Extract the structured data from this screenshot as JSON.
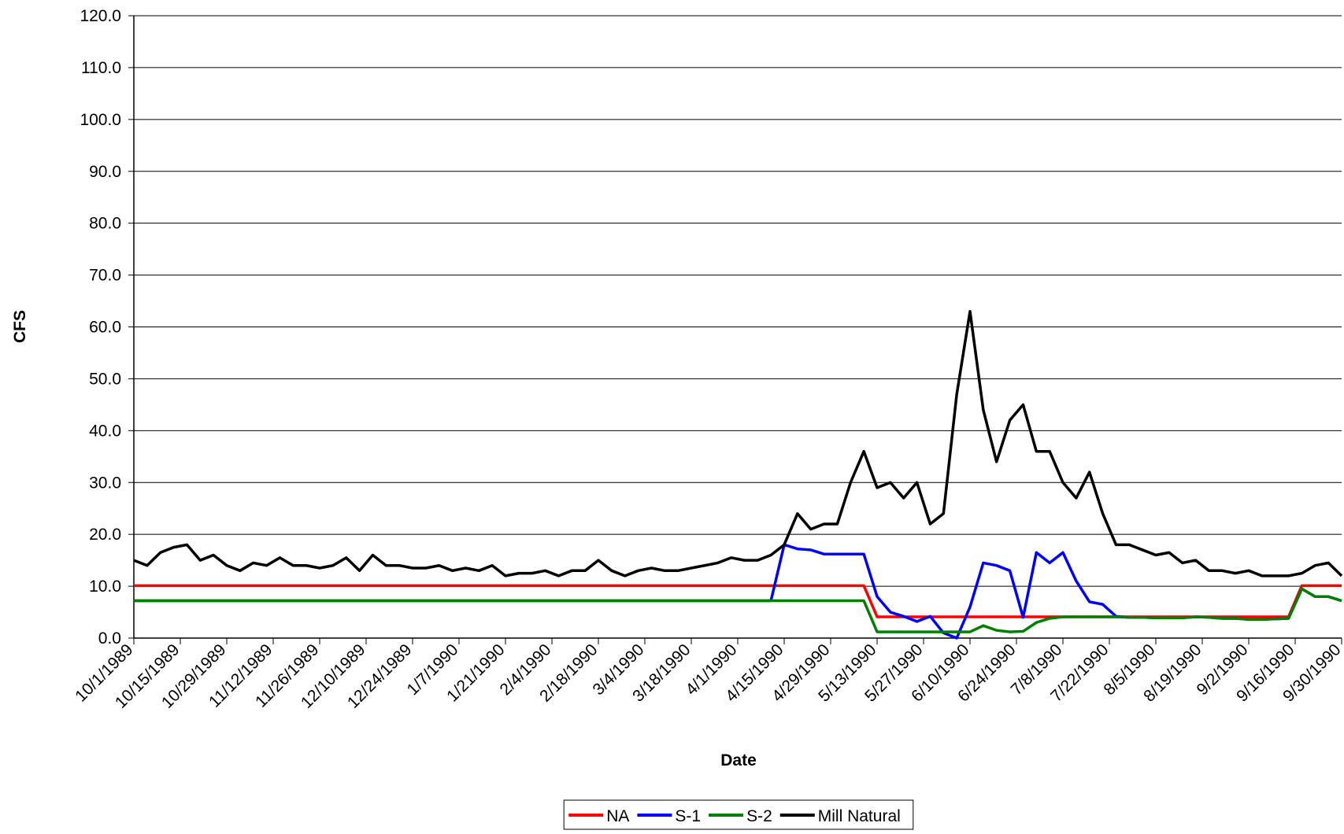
{
  "chart_data": {
    "type": "line",
    "x_label": "Date",
    "y_label": "CFS",
    "x": [
      "10/1/1989",
      "10/5/1989",
      "10/9/1989",
      "10/13/1989",
      "10/17/1989",
      "10/21/1989",
      "10/25/1989",
      "10/29/1989",
      "11/2/1989",
      "11/6/1989",
      "11/10/1989",
      "11/14/1989",
      "11/18/1989",
      "11/22/1989",
      "11/26/1989",
      "11/30/1989",
      "12/4/1989",
      "12/8/1989",
      "12/12/1989",
      "12/16/1989",
      "12/20/1989",
      "12/24/1989",
      "12/28/1989",
      "1/1/1990",
      "1/5/1990",
      "1/9/1990",
      "1/13/1990",
      "1/17/1990",
      "1/21/1990",
      "1/25/1990",
      "1/29/1990",
      "2/2/1990",
      "2/6/1990",
      "2/10/1990",
      "2/14/1990",
      "2/18/1990",
      "2/22/1990",
      "2/26/1990",
      "3/2/1990",
      "3/6/1990",
      "3/10/1990",
      "3/14/1990",
      "3/18/1990",
      "3/22/1990",
      "3/26/1990",
      "3/30/1990",
      "4/3/1990",
      "4/7/1990",
      "4/11/1990",
      "4/15/1990",
      "4/19/1990",
      "4/23/1990",
      "4/27/1990",
      "5/1/1990",
      "5/5/1990",
      "5/9/1990",
      "5/13/1990",
      "5/17/1990",
      "5/21/1990",
      "5/25/1990",
      "5/29/1990",
      "6/2/1990",
      "6/6/1990",
      "6/10/1990",
      "6/14/1990",
      "6/18/1990",
      "6/22/1990",
      "6/26/1990",
      "6/30/1990",
      "7/4/1990",
      "7/8/1990",
      "7/12/1990",
      "7/16/1990",
      "7/20/1990",
      "7/24/1990",
      "7/28/1990",
      "8/1/1990",
      "8/5/1990",
      "8/9/1990",
      "8/13/1990",
      "8/17/1990",
      "8/21/1990",
      "8/25/1990",
      "8/29/1990",
      "9/2/1990",
      "9/6/1990",
      "9/10/1990",
      "9/14/1990",
      "9/18/1990",
      "9/22/1990",
      "9/26/1990",
      "9/30/1990"
    ],
    "xlim": [
      "10/1/1989",
      "9/30/1990"
    ],
    "xticks": [
      "10/1/1989",
      "10/15/1989",
      "10/29/1989",
      "11/12/1989",
      "11/26/1989",
      "12/10/1989",
      "12/24/1989",
      "1/7/1990",
      "1/21/1990",
      "2/4/1990",
      "2/18/1990",
      "3/4/1990",
      "3/18/1990",
      "4/1/1990",
      "4/15/1990",
      "4/29/1990",
      "5/13/1990",
      "5/27/1990",
      "6/10/1990",
      "6/24/1990",
      "7/8/1990",
      "7/22/1990",
      "8/5/1990",
      "8/19/1990",
      "9/2/1990",
      "9/16/1990",
      "9/30/1990"
    ],
    "ylim": [
      0,
      120
    ],
    "yticks": [
      {
        "value": 0,
        "label": "0.0"
      },
      {
        "value": 10,
        "label": "10.0"
      },
      {
        "value": 20,
        "label": "20.0"
      },
      {
        "value": 30,
        "label": "30.0"
      },
      {
        "value": 40,
        "label": "40.0"
      },
      {
        "value": 50,
        "label": "50.0"
      },
      {
        "value": 60,
        "label": "60.0"
      },
      {
        "value": 70,
        "label": "70.0"
      },
      {
        "value": 80,
        "label": "80.0"
      },
      {
        "value": 90,
        "label": "90.0"
      },
      {
        "value": 100,
        "label": "100.0"
      },
      {
        "value": 110,
        "label": "110.0"
      },
      {
        "value": 120,
        "label": "120.0"
      }
    ],
    "grid": true,
    "legend": "bottom",
    "series": [
      {
        "name": "NA",
        "color": "#ff0000",
        "values": [
          10.1,
          10.1,
          10.1,
          10.1,
          10.1,
          10.1,
          10.1,
          10.1,
          10.1,
          10.1,
          10.1,
          10.1,
          10.1,
          10.1,
          10.1,
          10.1,
          10.1,
          10.1,
          10.1,
          10.1,
          10.1,
          10.1,
          10.1,
          10.1,
          10.1,
          10.1,
          10.1,
          10.1,
          10.1,
          10.1,
          10.1,
          10.1,
          10.1,
          10.1,
          10.1,
          10.1,
          10.1,
          10.1,
          10.1,
          10.1,
          10.1,
          10.1,
          10.1,
          10.1,
          10.1,
          10.1,
          10.1,
          10.1,
          10.1,
          10.1,
          10.1,
          10.1,
          10.1,
          10.1,
          10.1,
          10.1,
          4.1,
          4.1,
          4.1,
          4.1,
          4.1,
          4.1,
          4.1,
          4.1,
          4.1,
          4.1,
          4.1,
          4.1,
          4.1,
          4.1,
          4.1,
          4.1,
          4.1,
          4.1,
          4.1,
          4.1,
          4.1,
          4.1,
          4.1,
          4.1,
          4.1,
          4.1,
          4.1,
          4.1,
          4.1,
          4.1,
          4.1,
          4.1,
          10.1,
          10.1,
          10.1,
          10.1
        ]
      },
      {
        "name": "S-1",
        "color": "#0000ff",
        "values": [
          7.2,
          7.2,
          7.2,
          7.2,
          7.2,
          7.2,
          7.2,
          7.2,
          7.2,
          7.2,
          7.2,
          7.2,
          7.2,
          7.2,
          7.2,
          7.2,
          7.2,
          7.2,
          7.2,
          7.2,
          7.2,
          7.2,
          7.2,
          7.2,
          7.2,
          7.2,
          7.2,
          7.2,
          7.2,
          7.2,
          7.2,
          7.2,
          7.2,
          7.2,
          7.2,
          7.2,
          7.2,
          7.2,
          7.2,
          7.2,
          7.2,
          7.2,
          7.2,
          7.2,
          7.2,
          7.2,
          7.2,
          7.2,
          7.2,
          18.0,
          17.2,
          17.0,
          16.2,
          16.2,
          16.2,
          16.2,
          8.0,
          5.0,
          4.2,
          3.2,
          4.2,
          1.0,
          0,
          6.0,
          14.5,
          14.0,
          13.0,
          4.0,
          16.5,
          14.5,
          16.5,
          11.0,
          7.0,
          6.5,
          4.2,
          4.0,
          4.0,
          3.9,
          3.9,
          3.9,
          4.1,
          4.0,
          3.8,
          3.8,
          3.6,
          3.6,
          3.7,
          3.8,
          9.5,
          8.0,
          8.0,
          7.2
        ]
      },
      {
        "name": "S-2",
        "color": "#008000",
        "values": [
          7.2,
          7.2,
          7.2,
          7.2,
          7.2,
          7.2,
          7.2,
          7.2,
          7.2,
          7.2,
          7.2,
          7.2,
          7.2,
          7.2,
          7.2,
          7.2,
          7.2,
          7.2,
          7.2,
          7.2,
          7.2,
          7.2,
          7.2,
          7.2,
          7.2,
          7.2,
          7.2,
          7.2,
          7.2,
          7.2,
          7.2,
          7.2,
          7.2,
          7.2,
          7.2,
          7.2,
          7.2,
          7.2,
          7.2,
          7.2,
          7.2,
          7.2,
          7.2,
          7.2,
          7.2,
          7.2,
          7.2,
          7.2,
          7.2,
          7.2,
          7.2,
          7.2,
          7.2,
          7.2,
          7.2,
          7.2,
          1.2,
          1.2,
          1.2,
          1.2,
          1.2,
          1.2,
          1.2,
          1.2,
          2.4,
          1.5,
          1.2,
          1.3,
          3.0,
          3.8,
          4.1,
          4.1,
          4.1,
          4.1,
          4.1,
          4.0,
          4.0,
          3.9,
          3.9,
          3.9,
          4.1,
          4.0,
          3.8,
          3.8,
          3.6,
          3.6,
          3.7,
          3.8,
          9.5,
          8.0,
          8.0,
          7.2
        ]
      },
      {
        "name": "Mill Natural",
        "color": "#000000",
        "values": [
          15,
          14,
          16.5,
          17.5,
          18,
          15,
          16,
          14,
          13,
          14.5,
          14,
          15.5,
          14,
          14,
          13.5,
          14,
          15.5,
          13,
          16,
          14,
          14,
          13.5,
          13.5,
          14,
          13,
          13.5,
          13,
          14,
          12,
          12.5,
          12.5,
          13,
          12,
          13,
          13,
          15,
          13,
          12,
          13,
          13.5,
          13,
          13,
          13.5,
          14,
          14.5,
          15.5,
          15,
          15,
          16,
          18,
          24,
          21,
          22,
          22,
          30,
          36,
          29,
          30,
          27,
          30,
          22,
          24,
          47,
          63,
          44,
          34,
          42,
          45,
          36,
          36,
          30,
          27,
          32,
          24,
          18,
          18,
          17,
          16,
          16.5,
          14.5,
          15,
          13,
          13,
          12.5,
          13,
          12,
          12,
          12,
          12.5,
          14,
          14.5,
          12
        ]
      }
    ]
  }
}
